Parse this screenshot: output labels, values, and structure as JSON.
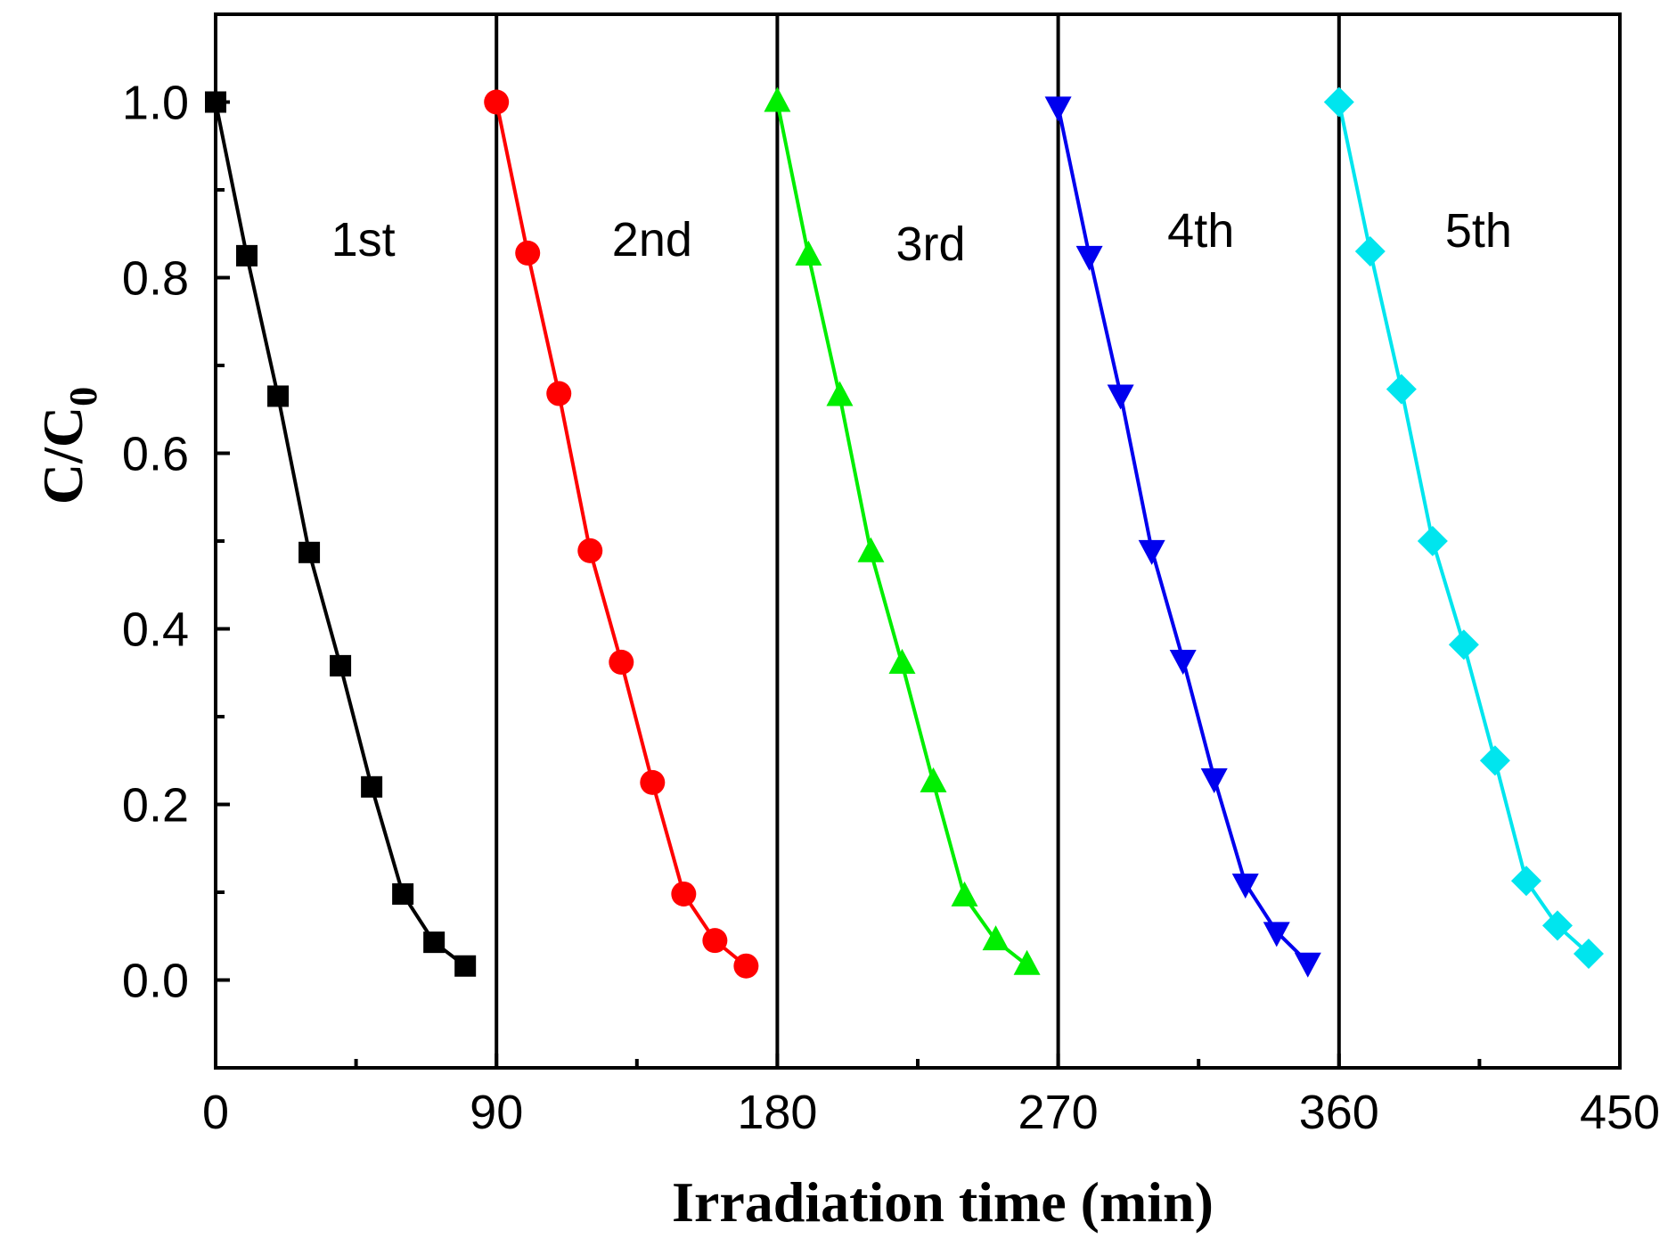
{
  "chart_data": {
    "type": "scatter",
    "title": "",
    "xlabel": "Irradiation time (min)",
    "ylabel": {
      "main": "C/C",
      "subscript": "0"
    },
    "xlim": [
      0,
      450
    ],
    "ylim": [
      -0.1,
      1.1
    ],
    "xticks": [
      0,
      90,
      180,
      270,
      360,
      450
    ],
    "xtick_labels": [
      "0",
      "90",
      "180",
      "270",
      "360",
      "450"
    ],
    "yticks": [
      0.0,
      0.2,
      0.4,
      0.6,
      0.8,
      1.0
    ],
    "ytick_labels": [
      "0.0",
      "0.2",
      "0.4",
      "0.6",
      "0.8",
      "1.0"
    ],
    "cycle_dividers": [
      90,
      180,
      270,
      360
    ],
    "series": [
      {
        "name": "1st",
        "color": "#000000",
        "marker": "square",
        "x": [
          0,
          10,
          20,
          30,
          40,
          50,
          60,
          70,
          80
        ],
        "y": [
          1.0,
          0.825,
          0.665,
          0.487,
          0.358,
          0.22,
          0.098,
          0.043,
          0.016
        ],
        "label_pos": [
          37,
          0.825
        ]
      },
      {
        "name": "2nd",
        "color": "#ff0000",
        "marker": "circle",
        "x": [
          90,
          100,
          110,
          120,
          130,
          140,
          150,
          160,
          170
        ],
        "y": [
          1.0,
          0.828,
          0.668,
          0.489,
          0.362,
          0.225,
          0.098,
          0.045,
          0.016
        ],
        "label_pos": [
          127,
          0.825
        ]
      },
      {
        "name": "3rd",
        "color": "#00ee00",
        "marker": "triangle-up",
        "x": [
          180,
          190,
          200,
          210,
          220,
          230,
          240,
          250,
          260
        ],
        "y": [
          1.0,
          0.825,
          0.665,
          0.487,
          0.36,
          0.225,
          0.095,
          0.045,
          0.017
        ],
        "label_pos": [
          218,
          0.82
        ]
      },
      {
        "name": "4th",
        "color": "#0000ee",
        "marker": "triangle-down",
        "x": [
          270,
          280,
          290,
          300,
          310,
          320,
          330,
          340,
          350
        ],
        "y": [
          0.995,
          0.825,
          0.667,
          0.49,
          0.365,
          0.23,
          0.11,
          0.055,
          0.02
        ],
        "label_pos": [
          305,
          0.835
        ]
      },
      {
        "name": "5th",
        "color": "#00e5ee",
        "marker": "diamond",
        "x": [
          360,
          370,
          380,
          390,
          400,
          410,
          420,
          430,
          440
        ],
        "y": [
          1.0,
          0.83,
          0.673,
          0.5,
          0.382,
          0.25,
          0.113,
          0.062,
          0.03
        ],
        "label_pos": [
          394,
          0.835
        ]
      }
    ]
  }
}
